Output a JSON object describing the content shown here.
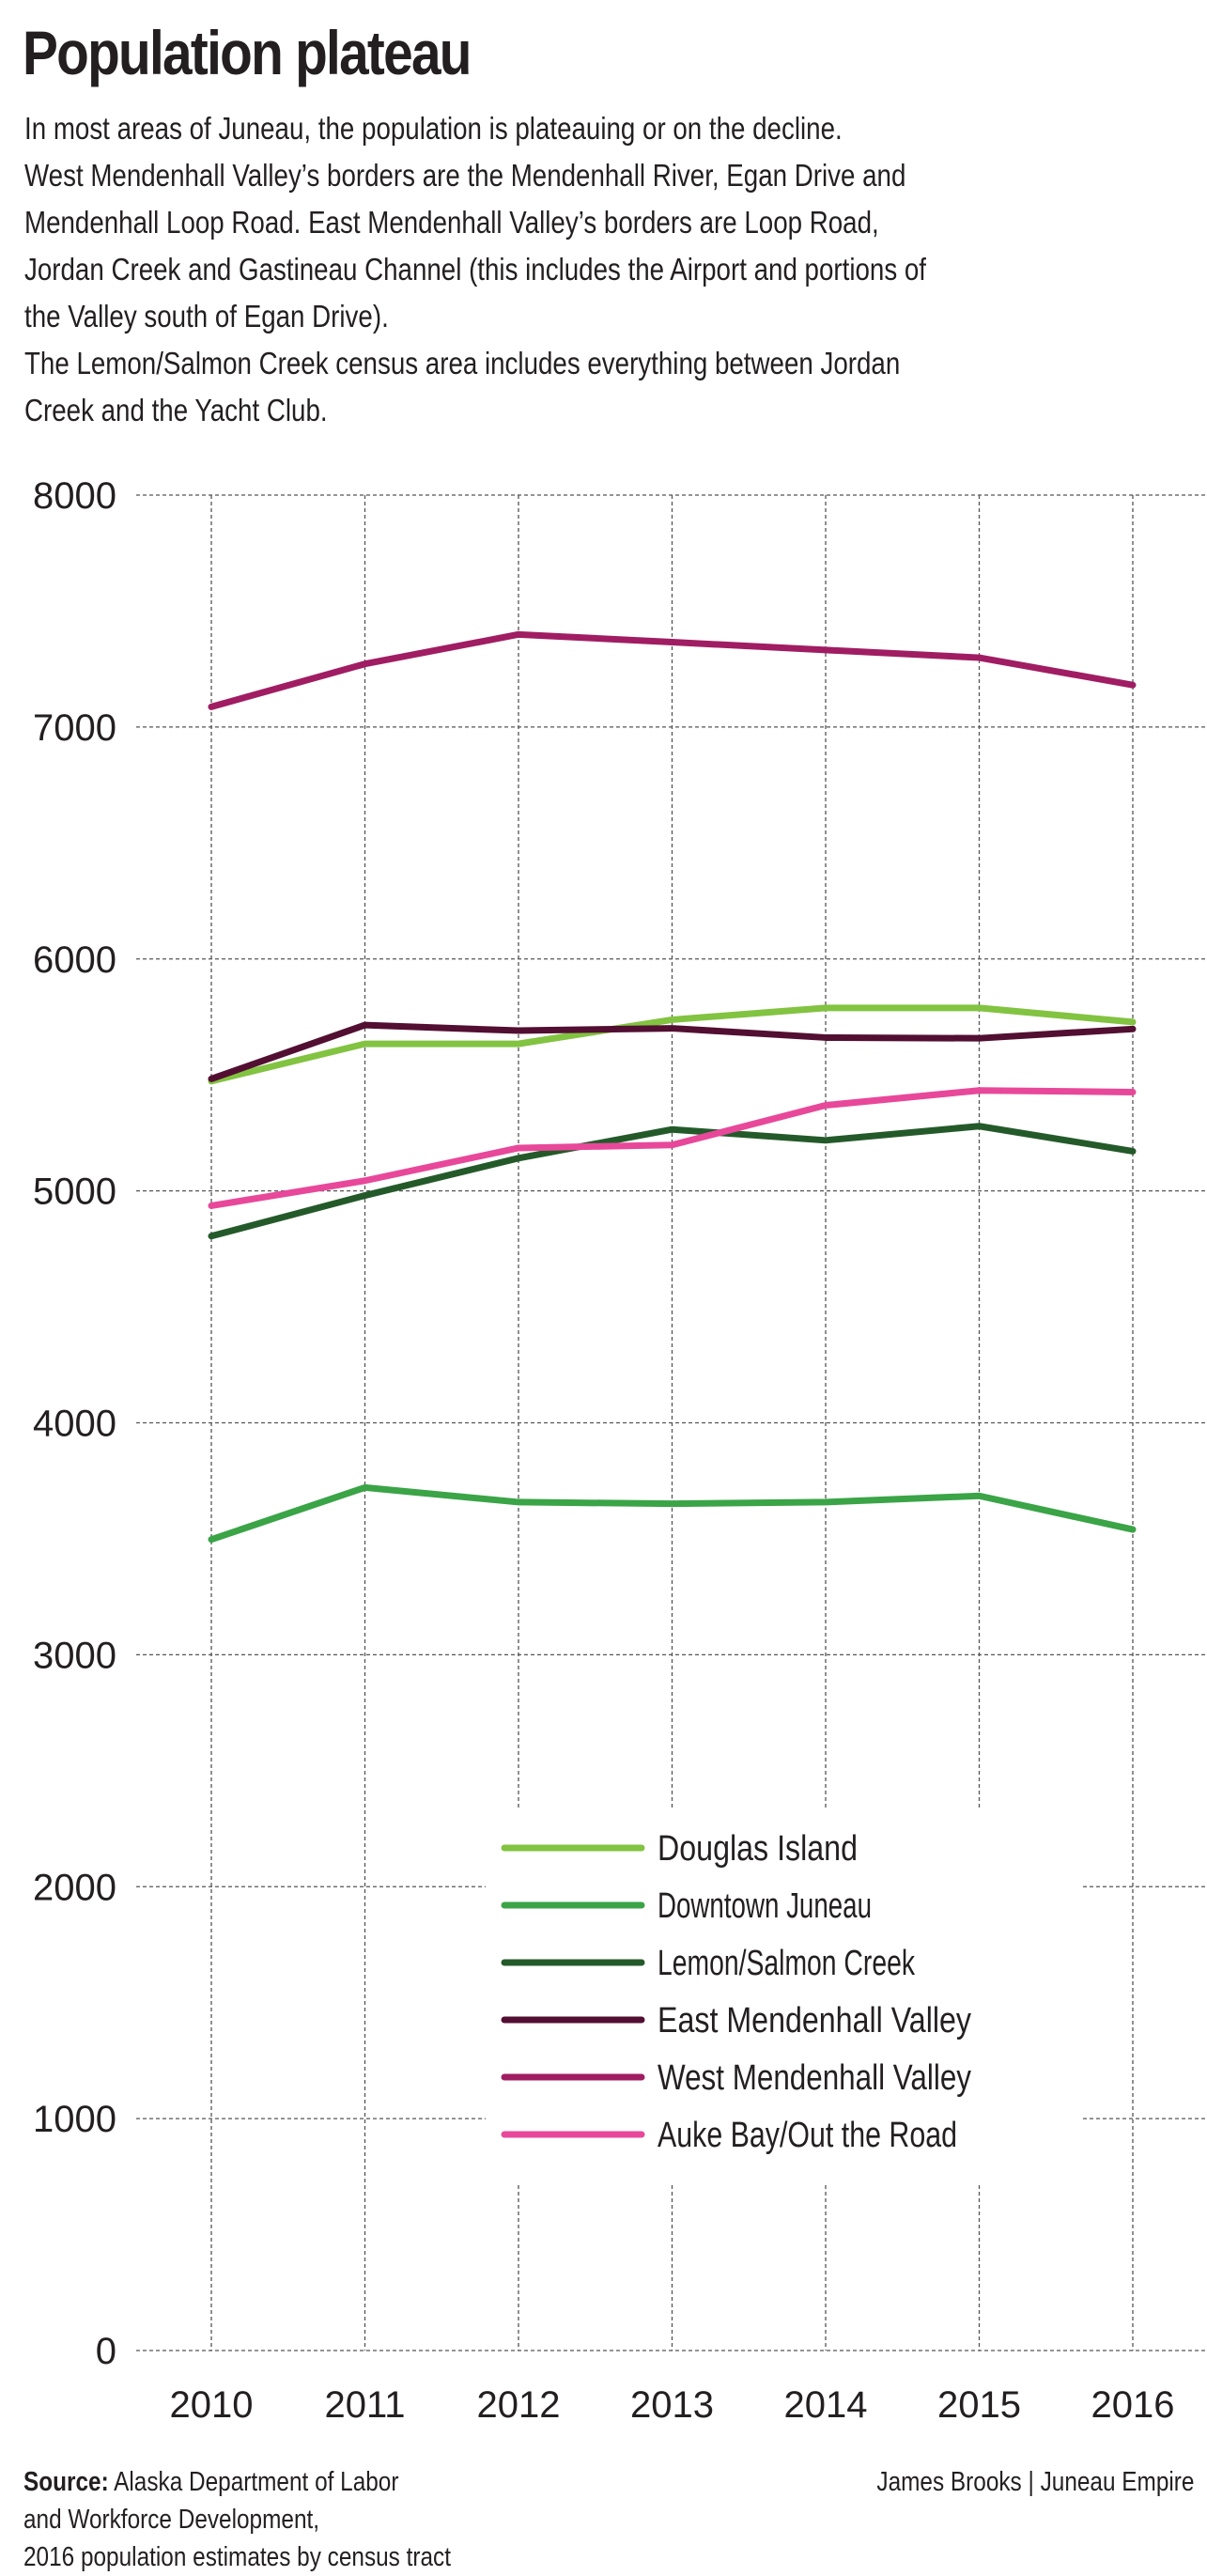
{
  "title": "Population plateau",
  "intro_lines": [
    "In most areas of Juneau, the population is plateauing or on the decline.",
    "West Mendenhall Valley’s borders are the Mendenhall River, Egan Drive and",
    "Mendenhall Loop Road. East Mendenhall Valley’s borders are Loop Road,",
    "Jordan Creek and Gastineau Channel (this includes the Airport and portions of",
    "the Valley south of Egan Drive).",
    "The Lemon/Salmon Creek census area includes everything between Jordan",
    "Creek and the Yacht Club."
  ],
  "footer": {
    "source_label": "Source:",
    "source_lines": [
      "Alaska Department of Labor",
      "and Workforce Development,",
      "2016 population estimates by census tract"
    ],
    "credit": "James Brooks | Juneau Empire"
  },
  "chart_data": {
    "type": "line",
    "title": "Population plateau",
    "xlabel": "",
    "ylabel": "",
    "x": [
      "2010",
      "2011",
      "2012",
      "2013",
      "2014",
      "2015",
      "2016"
    ],
    "ylim": [
      0,
      8000
    ],
    "yticks": [
      "0",
      "1000",
      "2000",
      "3000",
      "4000",
      "5000",
      "6000",
      "7000",
      "8000"
    ],
    "grid": true,
    "legend_position": "lower-right",
    "series": [
      {
        "name": "Douglas Island",
        "color": "#82c341",
        "values": [
          5473,
          5634,
          5634,
          5738,
          5789,
          5789,
          5728
        ]
      },
      {
        "name": "Downtown Juneau",
        "color": "#3aa447",
        "values": [
          3497,
          3721,
          3658,
          3651,
          3658,
          3685,
          3540
        ]
      },
      {
        "name": "Lemon/Salmon Creek",
        "color": "#245a2a",
        "values": [
          4805,
          4980,
          5141,
          5265,
          5218,
          5279,
          5171
        ]
      },
      {
        "name": "East Mendenhall Valley",
        "color": "#520f32",
        "values": [
          5483,
          5715,
          5691,
          5701,
          5661,
          5658,
          5698
        ]
      },
      {
        "name": "West Mendenhall Valley",
        "color": "#a01d63",
        "values": [
          7087,
          7272,
          7399,
          7366,
          7332,
          7299,
          7181
        ]
      },
      {
        "name": "Auke Bay/Out the Road",
        "color": "#e8489a",
        "values": [
          4936,
          5044,
          5185,
          5198,
          5369,
          5433,
          5426
        ]
      }
    ]
  }
}
